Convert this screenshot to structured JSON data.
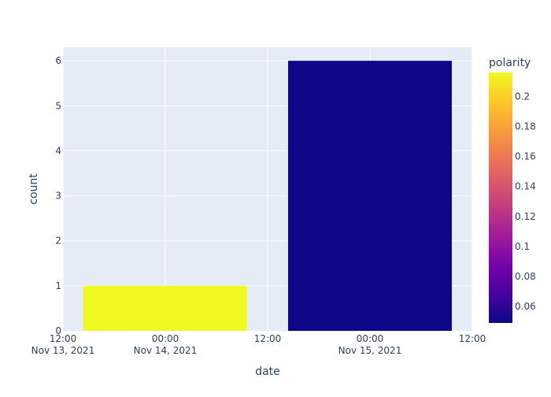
{
  "chart_data": {
    "type": "bar",
    "xlabel": "date",
    "ylabel": "count",
    "x_ticks": [
      {
        "value": "2021-11-13T12:00",
        "lines": [
          "12:00",
          "Nov 13, 2021"
        ]
      },
      {
        "value": "2021-11-14T00:00",
        "lines": [
          "00:00",
          "Nov 14, 2021"
        ]
      },
      {
        "value": "2021-11-14T12:00",
        "lines": [
          "12:00"
        ]
      },
      {
        "value": "2021-11-15T00:00",
        "lines": [
          "00:00",
          "Nov 15, 2021"
        ]
      },
      {
        "value": "2021-11-15T12:00",
        "lines": [
          "12:00"
        ]
      }
    ],
    "xlim": [
      "2021-11-13T12:00",
      "2021-11-15T12:00"
    ],
    "ylim": [
      0,
      6.3
    ],
    "y_ticks": [
      0,
      1,
      2,
      3,
      4,
      5,
      6
    ],
    "bars": [
      {
        "x_start": "2021-11-13T14:24",
        "x_end": "2021-11-14T09:36",
        "count": 1,
        "polarity": 0.216
      },
      {
        "x_start": "2021-11-14T14:24",
        "x_end": "2021-11-15T09:36",
        "count": 6,
        "polarity": 0.049
      }
    ],
    "colorbar": {
      "title": "polarity",
      "min": 0.049,
      "max": 0.216,
      "ticks": [
        0.06,
        0.08,
        0.1,
        0.12,
        0.14,
        0.16,
        0.18,
        0.2
      ],
      "colorscale": [
        "#0d0887",
        "#46039f",
        "#7201a8",
        "#9c179e",
        "#bd3786",
        "#d8576b",
        "#ed7953",
        "#fb9f3a",
        "#fdca26",
        "#f0f921"
      ]
    },
    "grid": true,
    "plot_bgcolor": "#e5ecf6"
  }
}
